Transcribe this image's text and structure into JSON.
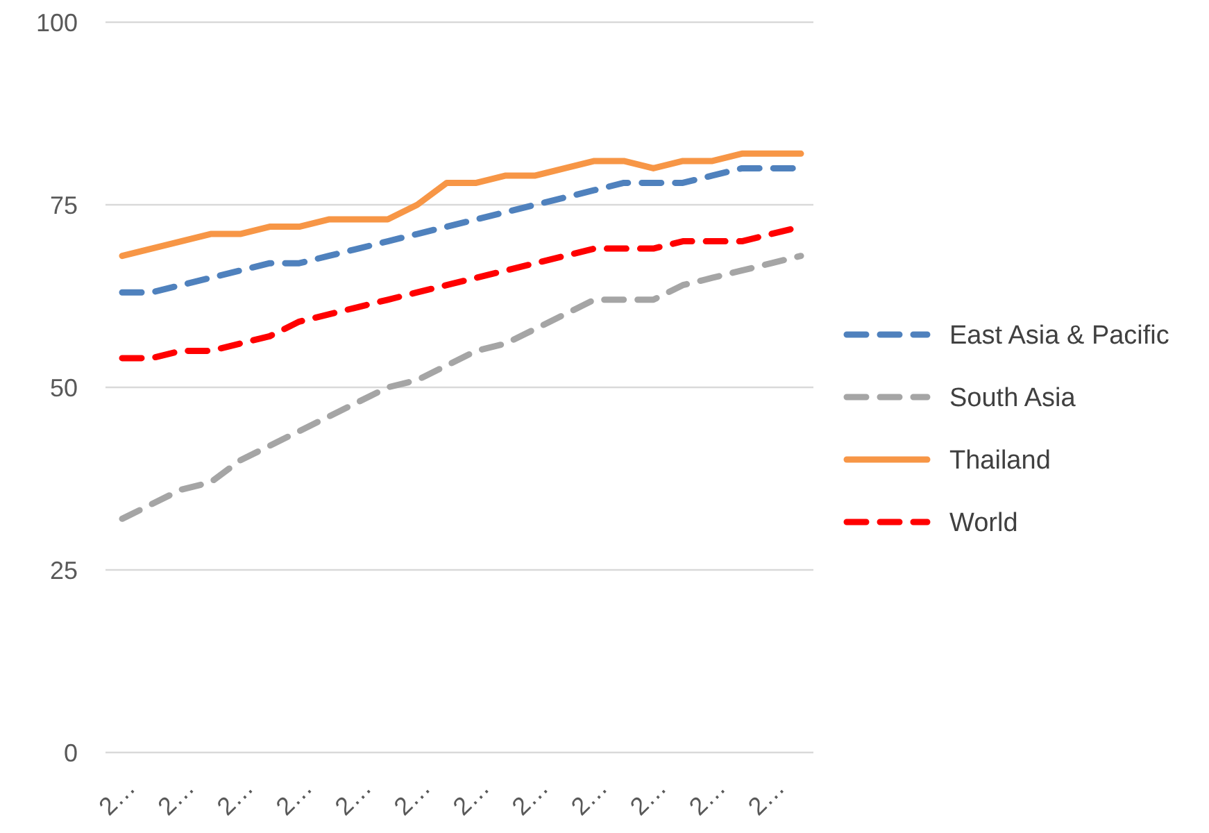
{
  "chart_data": {
    "type": "line",
    "categories": [
      "2…",
      null,
      "2…",
      null,
      "2…",
      null,
      "2…",
      null,
      "2…",
      null,
      "2…",
      null,
      "2…",
      null,
      "2…",
      null,
      "2…",
      null,
      "2…",
      null,
      "2…",
      null,
      "2…",
      null
    ],
    "series": [
      {
        "name": "East Asia & Pacific",
        "color": "#4f81bd",
        "line_style": "dashed",
        "values": [
          63,
          63,
          64,
          65,
          66,
          67,
          67,
          68,
          69,
          70,
          71,
          72,
          73,
          74,
          75,
          76,
          77,
          78,
          78,
          78,
          79,
          80,
          80,
          80
        ]
      },
      {
        "name": "South Asia",
        "color": "#a5a5a5",
        "line_style": "dashed",
        "values": [
          32,
          34,
          36,
          37,
          40,
          42,
          44,
          46,
          48,
          50,
          51,
          53,
          55,
          56,
          58,
          60,
          62,
          62,
          62,
          64,
          65,
          66,
          67,
          68
        ]
      },
      {
        "name": "Thailand",
        "color": "#f79646",
        "line_style": "solid",
        "values": [
          68,
          69,
          70,
          71,
          71,
          72,
          72,
          73,
          73,
          73,
          75,
          78,
          78,
          79,
          79,
          80,
          81,
          81,
          80,
          81,
          81,
          82,
          82,
          82
        ]
      },
      {
        "name": "World",
        "color": "#ff0000",
        "line_style": "dashed",
        "values": [
          54,
          54,
          55,
          55,
          56,
          57,
          59,
          60,
          61,
          62,
          63,
          64,
          65,
          66,
          67,
          68,
          69,
          69,
          69,
          70,
          70,
          70,
          71,
          72
        ]
      }
    ],
    "ylim": [
      0,
      100
    ],
    "yticks": [
      0,
      25,
      50,
      75,
      100
    ],
    "grid": "y",
    "legend": "right",
    "marker": "none"
  }
}
